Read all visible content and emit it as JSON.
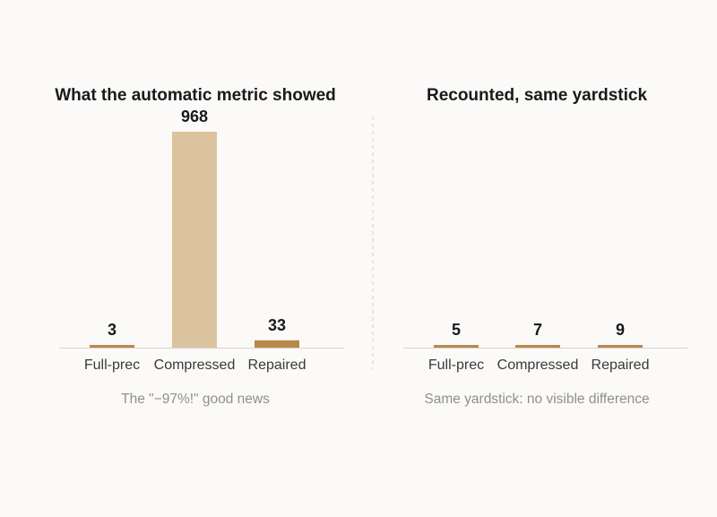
{
  "chart_data": [
    {
      "type": "bar",
      "title": "What the automatic metric showed",
      "categories": [
        "Full-prec",
        "Compressed",
        "Repaired"
      ],
      "values": [
        3,
        968,
        33
      ],
      "value_labels": [
        "3",
        "968",
        "33"
      ],
      "colors": [
        "#b8894a",
        "#dcc3a0",
        "#b8894a"
      ],
      "caption": "The \"−97%!\" good news",
      "ylim": [
        0,
        968
      ],
      "grid": false
    },
    {
      "type": "bar",
      "title": "Recounted, same yardstick",
      "categories": [
        "Full-prec",
        "Compressed",
        "Repaired"
      ],
      "values": [
        5,
        7,
        9
      ],
      "value_labels": [
        "5",
        "7",
        "9"
      ],
      "colors": [
        "#b8894a",
        "#b8894a",
        "#b8894a"
      ],
      "caption": "Same yardstick: no visible difference",
      "ylim": [
        0,
        968
      ],
      "grid": false
    }
  ],
  "colors": {
    "baseline": "#d9d5cf",
    "divider": "#d4d0ca"
  }
}
